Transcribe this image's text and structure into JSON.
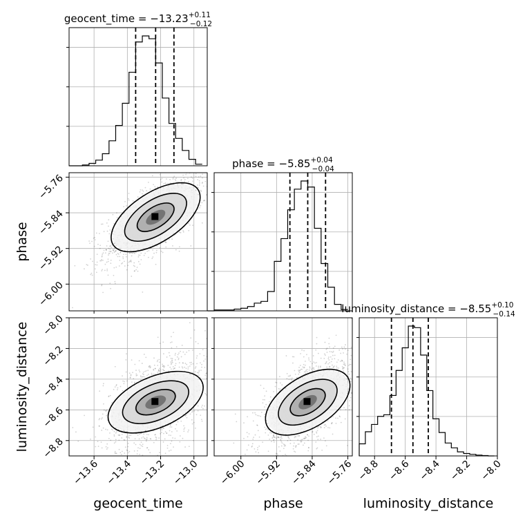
{
  "chart_data": {
    "type": "corner",
    "parameters": [
      {
        "name": "geocent_time",
        "range": [
          -13.75,
          -12.92
        ],
        "ticks": [
          -13.6,
          -13.4,
          -13.2,
          -13.0
        ],
        "tick_labels": [
          "−13.6",
          "−13.4",
          "−13.2",
          "−13.0"
        ],
        "median": -13.23,
        "upper_err": 0.11,
        "lower_err": 0.12,
        "quantiles": [
          -13.35,
          -13.23,
          -13.12
        ],
        "title_main": "geocent_time = −13.23",
        "title_sup": "+0.11",
        "title_sub": "−0.12",
        "hist_bins": [
          -13.75,
          -13.71,
          -13.67,
          -13.63,
          -13.59,
          -13.55,
          -13.51,
          -13.47,
          -13.43,
          -13.39,
          -13.35,
          -13.31,
          -13.27,
          -13.23,
          -13.19,
          -13.15,
          -13.11,
          -13.07,
          -13.03,
          -12.99,
          -12.95
        ],
        "hist_counts": [
          0,
          0,
          2,
          6,
          14,
          30,
          62,
          100,
          155,
          232,
          307,
          322,
          315,
          255,
          168,
          105,
          68,
          38,
          16,
          4
        ]
      },
      {
        "name": "phase",
        "range": [
          -6.06,
          -5.75
        ],
        "ticks": [
          -6.0,
          -5.92,
          -5.84,
          -5.76
        ],
        "tick_labels": [
          "−6.00",
          "−5.92",
          "−5.84",
          "−5.76"
        ],
        "median": -5.85,
        "upper_err": 0.04,
        "lower_err": 0.04,
        "quantiles": [
          -5.89,
          -5.85,
          -5.81
        ],
        "title_main": "phase = −5.85",
        "title_sup": "+0.04",
        "title_sub": "−0.04",
        "hist_bins": [
          -6.075,
          -6.06,
          -6.045,
          -6.03,
          -6.015,
          -6.0,
          -5.985,
          -5.97,
          -5.955,
          -5.94,
          -5.925,
          -5.91,
          -5.895,
          -5.88,
          -5.865,
          -5.85,
          -5.835,
          -5.82,
          -5.805,
          -5.79,
          -5.775,
          -5.76
        ],
        "hist_counts": [
          0,
          2,
          2,
          2,
          4,
          6,
          10,
          18,
          22,
          45,
          115,
          168,
          235,
          283,
          302,
          288,
          192,
          110,
          55,
          15,
          3
        ]
      },
      {
        "name": "luminosity_distance",
        "range": [
          -8.9,
          -8.0
        ],
        "ticks": [
          -8.8,
          -8.6,
          -8.4,
          -8.2,
          -8.0
        ],
        "tick_labels": [
          "−8.8",
          "−8.6",
          "−8.4",
          "−8.2",
          "−8.0"
        ],
        "median": -8.55,
        "upper_err": 0.1,
        "lower_err": 0.14,
        "quantiles": [
          -8.69,
          -8.55,
          -8.45
        ],
        "title_main": "luminosity_distance = −8.55",
        "title_sup": "+0.10",
        "title_sub": "−0.14",
        "hist_bins": [
          -8.9,
          -8.86,
          -8.82,
          -8.78,
          -8.74,
          -8.7,
          -8.66,
          -8.62,
          -8.58,
          -8.54,
          -8.5,
          -8.46,
          -8.42,
          -8.38,
          -8.34,
          -8.3,
          -8.26,
          -8.22,
          -8.18,
          -8.14,
          -8.1,
          -8.06,
          -8.02
        ],
        "hist_counts": [
          30,
          60,
          78,
          98,
          102,
          150,
          212,
          268,
          322,
          318,
          250,
          162,
          92,
          58,
          32,
          20,
          10,
          6,
          4,
          2,
          1,
          0
        ]
      }
    ],
    "scatter": [
      {
        "x_param": 0,
        "y_param": 1,
        "correlation": 0.7
      },
      {
        "x_param": 0,
        "y_param": 2,
        "correlation": 0.45
      },
      {
        "x_param": 1,
        "y_param": 2,
        "correlation": 0.6
      }
    ],
    "grid": true
  }
}
